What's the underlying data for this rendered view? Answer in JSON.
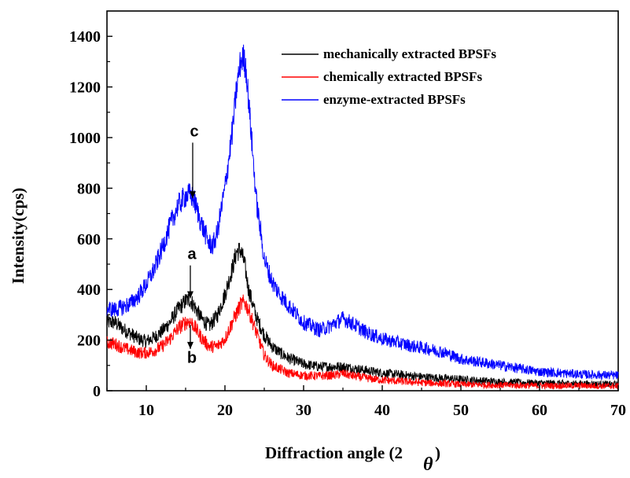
{
  "chart_data": {
    "type": "line",
    "title": "",
    "xlabel": "Diffraction angle (2",
    "xlabel_symbol": "θ",
    "xlabel_close": ")",
    "ylabel": "Intensity(cps)",
    "xlim": [
      5,
      70
    ],
    "ylim": [
      0,
      1500
    ],
    "xticks": [
      10,
      20,
      30,
      40,
      50,
      60,
      70
    ],
    "yticks": [
      0,
      200,
      400,
      600,
      800,
      1000,
      1200,
      1400
    ],
    "grid": false,
    "legend_position": "top-right",
    "series": [
      {
        "name": "mechanically extracted BPSFs",
        "color": "#000000",
        "x": [
          5,
          6,
          7,
          8,
          9,
          10,
          11,
          12,
          13,
          14,
          15,
          15.5,
          16,
          17,
          18,
          19,
          20,
          21,
          21.5,
          22,
          22.5,
          23,
          24,
          25,
          26,
          27,
          28,
          30,
          32,
          34,
          35,
          36,
          38,
          40,
          45,
          50,
          55,
          60,
          65,
          70
        ],
        "y": [
          270,
          270,
          245,
          225,
          205,
          195,
          210,
          235,
          270,
          320,
          355,
          360,
          340,
          285,
          255,
          295,
          380,
          490,
          550,
          555,
          500,
          400,
          290,
          220,
          175,
          150,
          130,
          105,
          95,
          95,
          95,
          90,
          80,
          70,
          55,
          45,
          35,
          30,
          28,
          25
        ]
      },
      {
        "name": "chemically extracted BPSFs",
        "color": "#ff0000",
        "x": [
          5,
          6,
          7,
          8,
          9,
          10,
          11,
          12,
          13,
          14,
          15,
          15.5,
          16,
          17,
          18,
          19,
          20,
          21,
          22,
          22.5,
          23,
          24,
          25,
          26,
          27,
          28,
          30,
          32,
          34,
          35,
          36,
          38,
          40,
          45,
          50,
          55,
          60,
          65,
          70
        ],
        "y": [
          190,
          185,
          170,
          160,
          150,
          150,
          158,
          175,
          205,
          245,
          270,
          275,
          260,
          210,
          175,
          175,
          205,
          275,
          340,
          350,
          320,
          230,
          140,
          100,
          85,
          70,
          60,
          58,
          62,
          68,
          60,
          50,
          42,
          32,
          25,
          22,
          20,
          20,
          18
        ]
      },
      {
        "name": "enzyme-extracted BPSFs",
        "color": "#0000ff",
        "x": [
          5,
          6,
          7,
          8,
          9,
          10,
          11,
          12,
          13,
          14,
          15,
          15.5,
          16,
          17,
          18,
          18.5,
          19,
          20,
          21,
          21.5,
          22,
          22.3,
          22.7,
          23,
          24,
          25,
          26,
          27,
          28,
          30,
          32,
          33,
          35,
          36,
          38,
          40,
          42,
          44,
          46,
          48,
          50,
          55,
          60,
          65,
          70
        ],
        "y": [
          325,
          320,
          330,
          345,
          375,
          420,
          480,
          560,
          650,
          730,
          770,
          775,
          760,
          660,
          580,
          575,
          620,
          800,
          1040,
          1200,
          1300,
          1320,
          1270,
          1150,
          750,
          520,
          430,
          380,
          340,
          270,
          240,
          250,
          285,
          270,
          230,
          205,
          190,
          175,
          165,
          150,
          125,
          100,
          75,
          65,
          60
        ]
      }
    ],
    "annotations": [
      {
        "text": "c",
        "x": 15.9,
        "y_text": 1005,
        "arrow_from": 980,
        "arrow_to": 760
      },
      {
        "text": "a",
        "x": 15.6,
        "y_text": 520,
        "arrow_from": 495,
        "arrow_to": 365
      },
      {
        "text": "b",
        "x": 15.6,
        "y_text": 110,
        "arrow_from": 260,
        "arrow_to": 165
      }
    ]
  }
}
